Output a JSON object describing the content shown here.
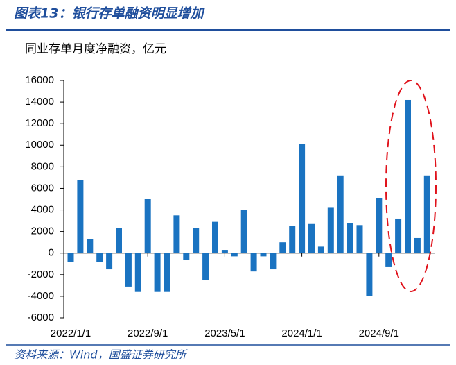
{
  "chart_data": {
    "type": "bar",
    "title": "图表13：银行存单融资明显增加",
    "subtitle": "同业存单月度净融资，亿元",
    "source": "资料来源：Wind，国盛证券研究所",
    "categories": [
      "2022/1/1",
      null,
      null,
      null,
      null,
      null,
      null,
      null,
      "2022/9/1",
      null,
      null,
      null,
      null,
      null,
      null,
      null,
      "2023/5/1",
      null,
      null,
      null,
      null,
      null,
      null,
      null,
      "2024/1/1",
      null,
      null,
      null,
      null,
      null,
      null,
      null,
      "2024/9/1",
      null,
      null,
      null,
      null,
      null
    ],
    "values": [
      -800,
      6800,
      1300,
      -800,
      -1500,
      2300,
      -3100,
      -3600,
      5000,
      -3600,
      -3600,
      3500,
      -600,
      2300,
      -2500,
      2900,
      300,
      -300,
      4000,
      -1700,
      -300,
      -1500,
      1000,
      2500,
      10100,
      2700,
      600,
      4200,
      7200,
      2800,
      2600,
      -4000,
      5100,
      -1300,
      3200,
      14200,
      1400,
      7200
    ],
    "color": "#1a73c1",
    "ylim": [
      -6000,
      16000
    ],
    "yticks": [
      -6000,
      -4000,
      -2000,
      0,
      2000,
      4000,
      6000,
      8000,
      10000,
      12000,
      14000,
      16000
    ]
  }
}
